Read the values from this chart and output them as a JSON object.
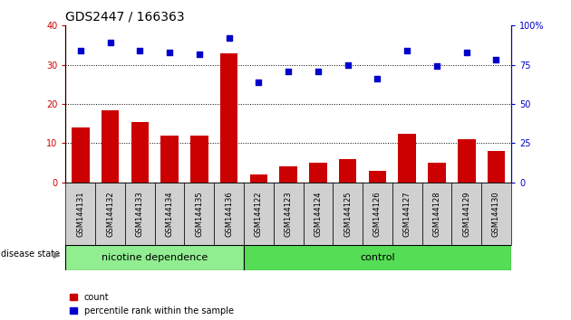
{
  "title": "GDS2447 / 166363",
  "samples": [
    "GSM144131",
    "GSM144132",
    "GSM144133",
    "GSM144134",
    "GSM144135",
    "GSM144136",
    "GSM144122",
    "GSM144123",
    "GSM144124",
    "GSM144125",
    "GSM144126",
    "GSM144127",
    "GSM144128",
    "GSM144129",
    "GSM144130"
  ],
  "count_values": [
    14,
    18.5,
    15.5,
    12,
    12,
    33,
    2,
    4,
    5,
    6,
    3,
    12.5,
    5,
    11,
    8
  ],
  "percentile_values": [
    84,
    89,
    84,
    83,
    82,
    92,
    64,
    71,
    71,
    75,
    66,
    84,
    74,
    83,
    78
  ],
  "bar_color": "#cc0000",
  "dot_color": "#0000cc",
  "left_ylim": [
    0,
    40
  ],
  "right_ylim": [
    0,
    100
  ],
  "left_yticks": [
    0,
    10,
    20,
    30,
    40
  ],
  "right_yticks": [
    0,
    25,
    50,
    75,
    100
  ],
  "right_yticklabels": [
    "0",
    "25",
    "50",
    "75",
    "100%"
  ],
  "grid_values": [
    10,
    20,
    30
  ],
  "n_nicotine": 6,
  "n_control": 9,
  "nicotine_label": "nicotine dependence",
  "control_label": "control",
  "disease_state_label": "disease state",
  "group_color_nicotine": "#90ee90",
  "group_color_control": "#55dd55",
  "tick_bg_color": "#d0d0d0",
  "legend_count_label": "count",
  "legend_percentile_label": "percentile rank within the sample",
  "title_fontsize": 10,
  "tick_fontsize": 7,
  "label_fontsize": 6,
  "group_fontsize": 8
}
